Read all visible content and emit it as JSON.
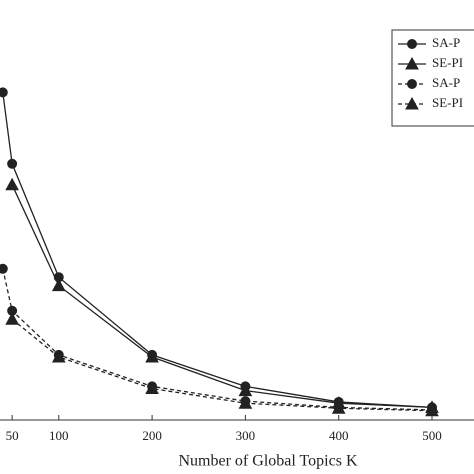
{
  "chart_data": {
    "type": "line",
    "x_label": "Number of Global Topics K",
    "x": [
      40,
      50,
      100,
      200,
      300,
      400,
      500
    ],
    "xlim": [
      37,
      545
    ],
    "ylim": [
      0,
      100
    ],
    "xticks": [
      50,
      100,
      200,
      300,
      400,
      500
    ],
    "legend": "upper right",
    "series": [
      {
        "name": "SA-P",
        "color": "#222222",
        "marker": "circle",
        "linestyle": "solid",
        "values": [
          78,
          61,
          34,
          15.5,
          8,
          4.3,
          3
        ]
      },
      {
        "name": "SE-PI",
        "color": "#222222",
        "marker": "triangle",
        "linestyle": "solid",
        "values": [
          null,
          56,
          32,
          15,
          7,
          4,
          3
        ]
      },
      {
        "name": "SA-P",
        "color": "#222222",
        "marker": "circle",
        "linestyle": "dashed",
        "values": [
          36,
          26,
          15.5,
          8,
          4.5,
          3,
          2.4
        ]
      },
      {
        "name": "SE-PI",
        "color": "#222222",
        "marker": "triangle",
        "linestyle": "dashed",
        "values": [
          null,
          24,
          15,
          7.5,
          4,
          2.8,
          2.2
        ]
      }
    ]
  }
}
